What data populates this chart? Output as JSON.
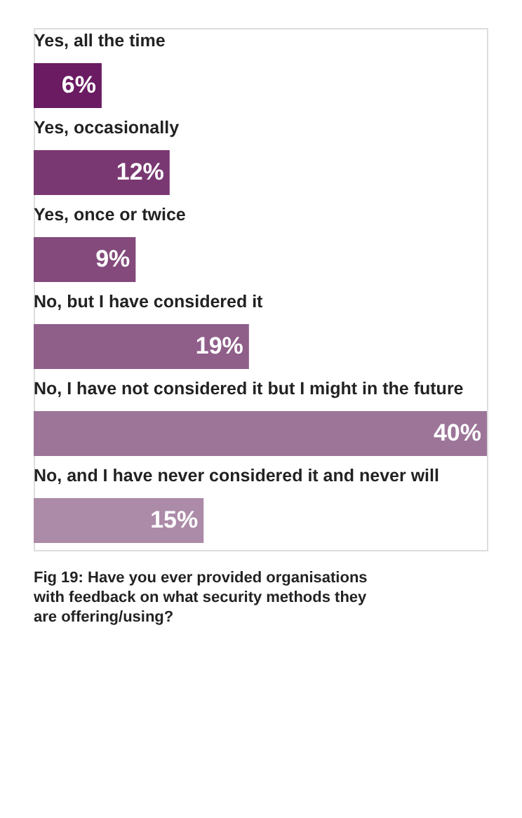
{
  "chart_data": {
    "type": "bar",
    "orientation": "horizontal",
    "categories": [
      "Yes, all the time",
      "Yes, occasionally",
      "Yes, once or twice",
      "No, but I have considered it",
      "No, I have not considered it but I might in the future",
      "No, and I have never considered it and never will"
    ],
    "values": [
      6,
      12,
      9,
      19,
      40,
      15
    ],
    "colors": [
      "#6a1b62",
      "#7a3872",
      "#844a7c",
      "#8f5e89",
      "#9c7598",
      "#ac8ba8"
    ],
    "value_labels": [
      "6%",
      "12%",
      "9%",
      "19%",
      "40%",
      "15%"
    ],
    "xlim": [
      0,
      40
    ],
    "tick_labels": false,
    "grid": false,
    "annotations": [
      "Fig 19: Have you ever provided organisations with feedback on what security methods they are offering/using?"
    ]
  }
}
